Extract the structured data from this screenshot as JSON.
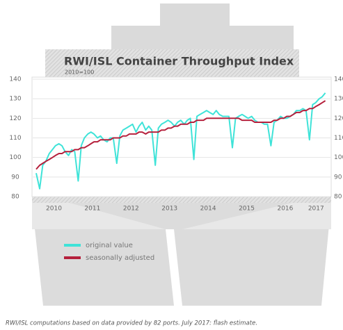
{
  "chart_data": {
    "type": "line",
    "title": "RWI/ISL Container Throughput Index",
    "subtitle": "2010=100",
    "footnote": "RWI/ISL computations based on data provided by 82 ports. July 2017: flash estimate.",
    "x": [
      2010.04,
      2010.13,
      2010.21,
      2010.29,
      2010.38,
      2010.46,
      2010.54,
      2010.63,
      2010.71,
      2010.79,
      2010.88,
      2010.96,
      2011.04,
      2011.13,
      2011.21,
      2011.29,
      2011.38,
      2011.46,
      2011.54,
      2011.63,
      2011.71,
      2011.79,
      2011.88,
      2011.96,
      2012.04,
      2012.13,
      2012.21,
      2012.29,
      2012.38,
      2012.46,
      2012.54,
      2012.63,
      2012.71,
      2012.79,
      2012.88,
      2012.96,
      2013.04,
      2013.13,
      2013.21,
      2013.29,
      2013.38,
      2013.46,
      2013.54,
      2013.63,
      2013.71,
      2013.79,
      2013.88,
      2013.96,
      2014.04,
      2014.13,
      2014.21,
      2014.29,
      2014.38,
      2014.46,
      2014.54,
      2014.63,
      2014.71,
      2014.79,
      2014.88,
      2014.96,
      2015.04,
      2015.13,
      2015.21,
      2015.29,
      2015.38,
      2015.46,
      2015.54,
      2015.63,
      2015.71,
      2015.79,
      2015.88,
      2015.96,
      2016.04,
      2016.13,
      2016.21,
      2016.29,
      2016.38,
      2016.46,
      2016.54,
      2016.63,
      2016.71,
      2016.79,
      2016.88,
      2016.96,
      2017.04,
      2017.13,
      2017.21,
      2017.29,
      2017.38,
      2017.46,
      2017.54
    ],
    "series": [
      {
        "name": "original value",
        "color": "#3fe3d8",
        "values": [
          92,
          84,
          96,
          98,
          102,
          104,
          106,
          107,
          106,
          103,
          101,
          104,
          103,
          88,
          106,
          110,
          112,
          113,
          112,
          110,
          111,
          109,
          108,
          110,
          110,
          97,
          111,
          114,
          115,
          116,
          117,
          113,
          116,
          118,
          114,
          116,
          114,
          96,
          115,
          117,
          118,
          119,
          118,
          116,
          118,
          119,
          117,
          119,
          120,
          99,
          121,
          122,
          123,
          124,
          123,
          122,
          124,
          122,
          121,
          121,
          121,
          105,
          120,
          121,
          122,
          121,
          120,
          121,
          119,
          118,
          118,
          117,
          117,
          106,
          118,
          119,
          121,
          120,
          120,
          121,
          122,
          124,
          124,
          125,
          124,
          109,
          127,
          128,
          130,
          131,
          133
        ]
      },
      {
        "name": "seasonally adjusted",
        "color": "#b5203c",
        "values": [
          94,
          96,
          97,
          98,
          99,
          100,
          101,
          102,
          102,
          103,
          103,
          103,
          104,
          104,
          105,
          105,
          106,
          107,
          108,
          108,
          109,
          109,
          109,
          109,
          110,
          110,
          110,
          111,
          111,
          112,
          112,
          112,
          113,
          113,
          112,
          113,
          113,
          113,
          113,
          114,
          114,
          115,
          115,
          116,
          116,
          117,
          117,
          117,
          118,
          118,
          119,
          119,
          119,
          120,
          120,
          120,
          120,
          120,
          120,
          120,
          120,
          120,
          120,
          120,
          119,
          119,
          119,
          119,
          118,
          118,
          118,
          118,
          118,
          118,
          119,
          119,
          120,
          120,
          121,
          121,
          122,
          123,
          123,
          124,
          124,
          125,
          125,
          126,
          127,
          128,
          129
        ]
      }
    ],
    "xlim": [
      2009.95,
      2017.62
    ],
    "xticks": [
      {
        "value": 2010.5,
        "label": "2010"
      },
      {
        "value": 2011.5,
        "label": "2011"
      },
      {
        "value": 2012.5,
        "label": "2012"
      },
      {
        "value": 2013.5,
        "label": "2013"
      },
      {
        "value": 2014.5,
        "label": "2014"
      },
      {
        "value": 2015.5,
        "label": "2015"
      },
      {
        "value": 2016.5,
        "label": "2016"
      },
      {
        "value": 2017.3,
        "label": "2017"
      }
    ],
    "ylim": [
      80,
      140
    ],
    "yticks": [
      80,
      90,
      100,
      110,
      120,
      130,
      140
    ],
    "grid": true
  }
}
